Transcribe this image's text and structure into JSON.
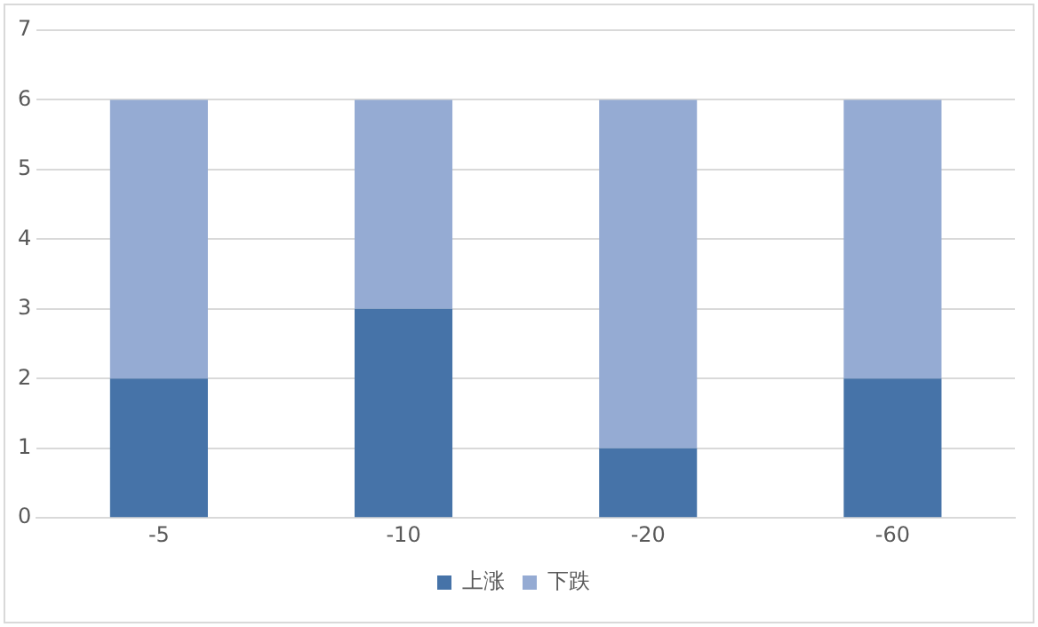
{
  "chart_data": {
    "type": "bar",
    "stacked": true,
    "categories": [
      "-5",
      "-10",
      "-20",
      "-60"
    ],
    "series": [
      {
        "name": "上涨",
        "color": "#4673a8",
        "values": [
          2,
          3,
          1,
          2
        ]
      },
      {
        "name": "下跌",
        "color": "#95abd3",
        "values": [
          4,
          3,
          5,
          4
        ]
      }
    ],
    "ylim": [
      0,
      7
    ],
    "yticks": [
      0,
      1,
      2,
      3,
      4,
      5,
      6,
      7
    ],
    "grid": "y",
    "legend": "bottom"
  }
}
